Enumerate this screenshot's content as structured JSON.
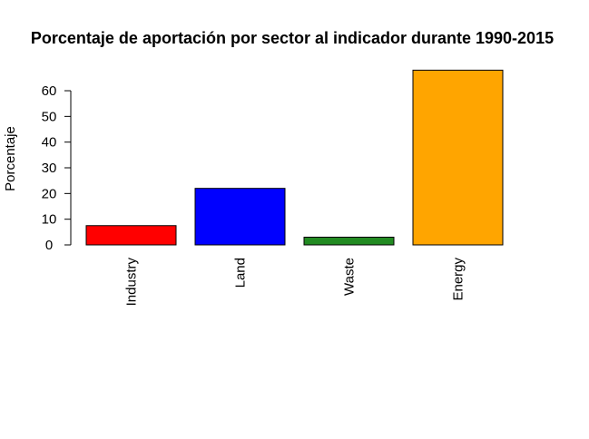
{
  "chart_data": {
    "type": "bar",
    "title": "Porcentaje de aportación por sector al indicador durante 1990-2015",
    "xlabel": "",
    "ylabel": "Porcentaje",
    "categories": [
      "Industry",
      "Land",
      "Waste",
      "Energy"
    ],
    "values": [
      7.5,
      22,
      3,
      68
    ],
    "colors": [
      "#ff0000",
      "#0000ff",
      "#228b22",
      "#ffa500"
    ],
    "yticks": [
      0,
      10,
      20,
      30,
      40,
      50,
      60
    ],
    "ytick_labels": [
      "0",
      "10",
      "20",
      "30",
      "40",
      "50",
      "60"
    ],
    "ylim": [
      0,
      68
    ],
    "grid": false,
    "legend": "none"
  }
}
